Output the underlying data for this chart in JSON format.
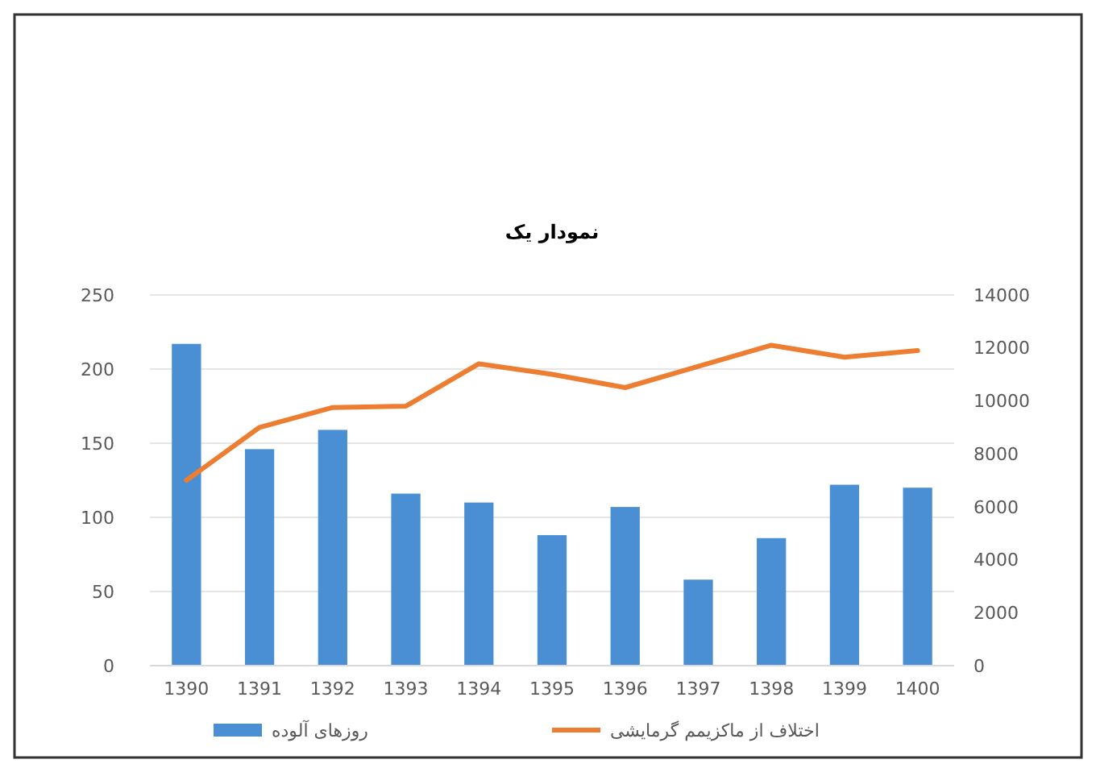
{
  "chart_data": {
    "type": "bar",
    "title": "نمودار یک",
    "categories": [
      "1390",
      "1391",
      "1392",
      "1393",
      "1394",
      "1395",
      "1396",
      "1397",
      "1398",
      "1399",
      "1400"
    ],
    "series": [
      {
        "name": "روزهای آلوده",
        "color": "#4a8fd4",
        "values": [
          217,
          146,
          159,
          116,
          110,
          88,
          107,
          58,
          86,
          122,
          120
        ]
      },
      {
        "name": "اختلاف از ماکزیمم گرمایشی",
        "type": "line",
        "axis": "y2",
        "color": "#ed7d31",
        "values": [
          7000,
          9000,
          9750,
          9800,
          11400,
          11000,
          10500,
          11300,
          12100,
          11650,
          11900
        ]
      }
    ],
    "ylim": [
      0,
      250
    ],
    "yticks": [
      0,
      50,
      100,
      150,
      200,
      250
    ],
    "y2lim": [
      0,
      14000
    ],
    "y2ticks": [
      0,
      2000,
      4000,
      6000,
      8000,
      10000,
      12000,
      14000
    ],
    "grid": "y",
    "legend": "bottom"
  }
}
